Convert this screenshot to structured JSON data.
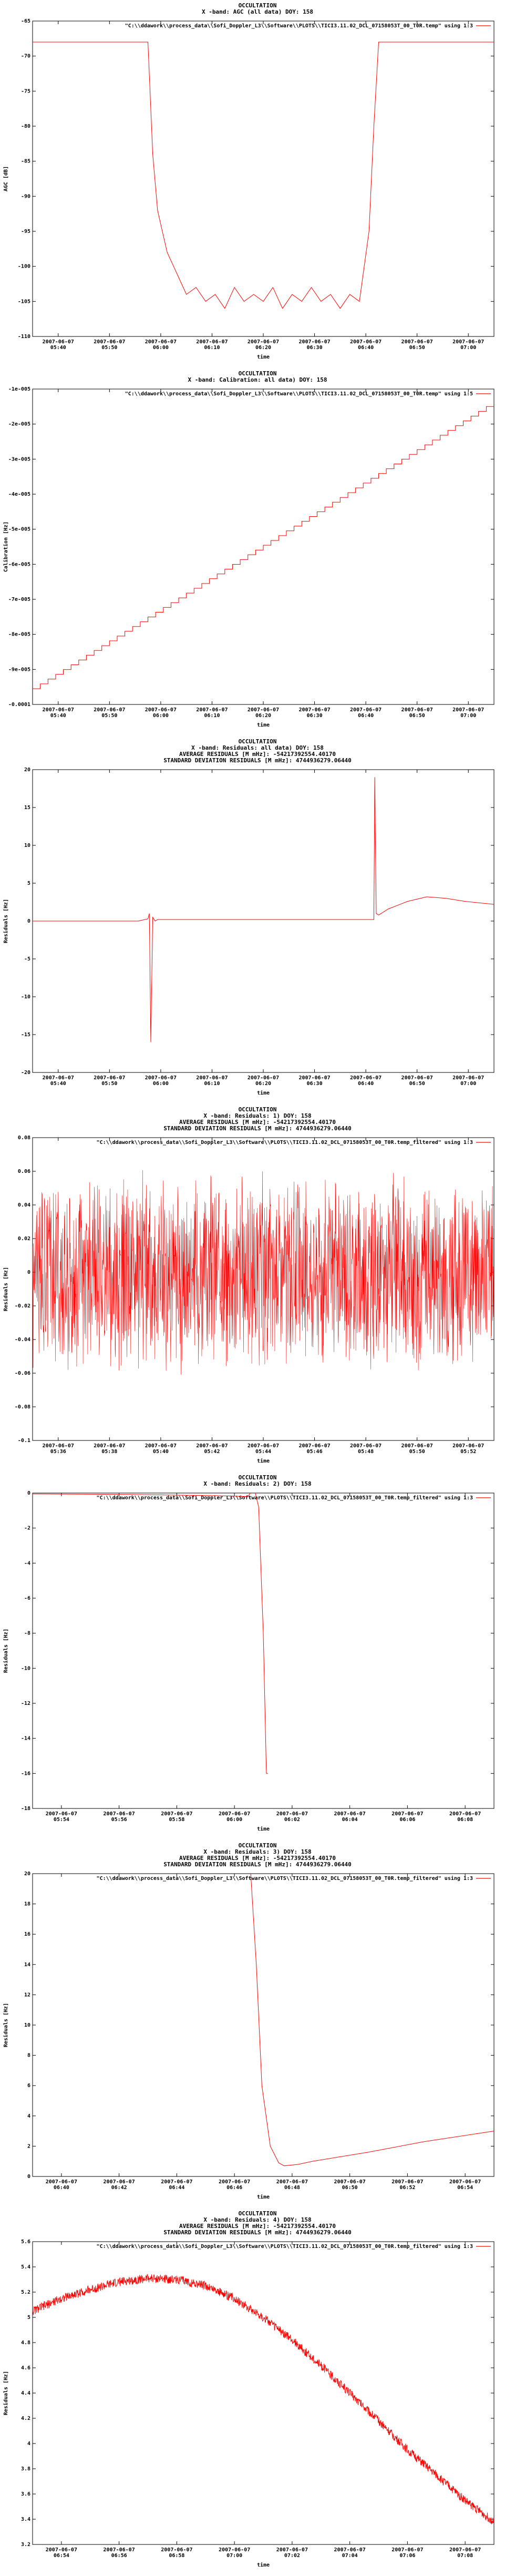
{
  "chart_data": [
    {
      "type": "line",
      "title": [
        "OCCULTATION",
        "X -band: AGC (all data) DOY: 158"
      ],
      "xlabel": "time",
      "ylabel": "AGC [dB]",
      "legend": "\"C:\\\\ddawork\\\\process_data\\\\Sofi_Doppler_L3\\\\Software\\\\PLOTS\\\\TICI3.11.02_DCL_07158053T_00_T0R.temp\" using 1:3",
      "legend_position": "top-right",
      "grid": false,
      "color": "#ff0000",
      "ylim": [
        -110,
        -65
      ],
      "yticks": [
        "-65",
        "-70",
        "-75",
        "-80",
        "-85",
        "-90",
        "-95",
        "-100",
        "-105",
        "-110"
      ],
      "xticks": [
        [
          "2007-06-07",
          "05:40"
        ],
        [
          "2007-06-07",
          "05:50"
        ],
        [
          "2007-06-07",
          "06:00"
        ],
        [
          "2007-06-07",
          "06:10"
        ],
        [
          "2007-06-07",
          "06:20"
        ],
        [
          "2007-06-07",
          "06:30"
        ],
        [
          "2007-06-07",
          "06:40"
        ],
        [
          "2007-06-07",
          "06:50"
        ],
        [
          "2007-06-07",
          "07:00"
        ]
      ],
      "xlim_minutes": [
        336,
        432
      ],
      "series": [
        {
          "x": [
            336,
            360,
            361,
            362,
            363,
            364,
            366,
            368,
            370,
            372,
            374,
            376,
            378,
            380,
            382,
            384,
            386,
            388,
            390,
            392,
            394,
            396,
            398,
            400,
            402,
            404,
            406,
            407,
            408,
            432
          ],
          "y": [
            -68,
            -68,
            -84,
            -92,
            -95,
            -98,
            -101,
            -104,
            -103,
            -105,
            -104,
            -106,
            -103,
            -105,
            -104,
            -105,
            -103,
            -106,
            -104,
            -105,
            -103,
            -105,
            -104,
            -106,
            -104,
            -105,
            -95,
            -80,
            -68,
            -68
          ]
        }
      ]
    },
    {
      "type": "line",
      "title": [
        "OCCULTATION",
        "X -band: Calibration: all data) DOY: 158"
      ],
      "xlabel": "time",
      "ylabel": "Calibration [Hz]",
      "legend": "\"C:\\\\ddawork\\\\process_data\\\\Sofi_Doppler_L3\\\\Software\\\\PLOTS\\\\TICI3.11.02_DCL_07158053T_00_T0R.temp\" using 1:5",
      "legend_position": "top-right",
      "grid": false,
      "color": "#ff0000",
      "ylim": [
        -0.0001,
        -1e-05
      ],
      "yticks": [
        "-1e-005",
        "-2e-005",
        "-3e-005",
        "-4e-005",
        "-5e-005",
        "-6e-005",
        "-7e-005",
        "-8e-005",
        "-9e-005",
        "-0.0001"
      ],
      "xticks": [
        [
          "2007-06-07",
          "05:40"
        ],
        [
          "2007-06-07",
          "05:50"
        ],
        [
          "2007-06-07",
          "06:00"
        ],
        [
          "2007-06-07",
          "06:10"
        ],
        [
          "2007-06-07",
          "06:20"
        ],
        [
          "2007-06-07",
          "06:30"
        ],
        [
          "2007-06-07",
          "06:40"
        ],
        [
          "2007-06-07",
          "06:50"
        ],
        [
          "2007-06-07",
          "07:00"
        ]
      ],
      "xlim_minutes": [
        336,
        432
      ],
      "series": [
        {
          "x": [
            336,
            432
          ],
          "y": [
            -9.55e-05,
            -1.5e-05
          ],
          "steps": 60
        }
      ]
    },
    {
      "type": "line",
      "title": [
        "OCCULTATION",
        "X -band: Residuals: all data) DOY: 158",
        "AVERAGE RESIDUALS [M mHz]: -54217392554.40170",
        "STANDARD DEVIATION RESIDUALS [M mHz]: 4744936279.06440"
      ],
      "xlabel": "time",
      "ylabel": "Residuals [Hz]",
      "legend": "",
      "legend_position": "top-right",
      "grid": false,
      "color": "#ff0000",
      "ylim": [
        -20,
        20
      ],
      "yticks": [
        "20",
        "15",
        "10",
        "5",
        "0",
        "-5",
        "-10",
        "-15",
        "-20"
      ],
      "xticks": [
        [
          "2007-06-07",
          "05:40"
        ],
        [
          "2007-06-07",
          "05:50"
        ],
        [
          "2007-06-07",
          "06:00"
        ],
        [
          "2007-06-07",
          "06:10"
        ],
        [
          "2007-06-07",
          "06:20"
        ],
        [
          "2007-06-07",
          "06:30"
        ],
        [
          "2007-06-07",
          "06:40"
        ],
        [
          "2007-06-07",
          "06:50"
        ],
        [
          "2007-06-07",
          "07:00"
        ]
      ],
      "xlim_minutes": [
        336,
        432
      ],
      "series": [
        {
          "x": [
            336,
            350,
            358,
            360,
            360.3,
            360.6,
            361,
            361.5,
            362,
            407,
            407.2,
            407.5,
            408,
            410,
            414,
            418,
            422,
            426,
            432
          ],
          "y": [
            0,
            0,
            0,
            0.3,
            1,
            -16,
            0.5,
            0,
            0.2,
            0.2,
            19,
            1,
            0.8,
            1.6,
            2.6,
            3.2,
            3.0,
            2.6,
            2.2
          ]
        }
      ]
    },
    {
      "type": "line",
      "title": [
        "OCCULTATION",
        "X -band: Residuals: 1) DOY: 158",
        "AVERAGE RESIDUALS [M mHz]: -54217392554.40170",
        "STANDARD DEVIATION RESIDUALS [M mHz]: 4744936279.06440"
      ],
      "xlabel": "time",
      "ylabel": "Residuals [Hz]",
      "legend": "\"C:\\\\ddawork\\\\process_data\\\\Sofi_Doppler_L3\\\\Software\\\\PLOTS\\\\TICI3.11.02_DCL_07158053T_00_T0R.temp_filtered\" using 1:3",
      "legend_position": "top-right",
      "grid": false,
      "color": "#ff0000",
      "ylim": [
        -0.1,
        0.08
      ],
      "yticks": [
        "0.08",
        "0.06",
        "0.04",
        "0.02",
        "0",
        "-0.02",
        "-0.04",
        "-0.06",
        "-0.08",
        "-0.1"
      ],
      "xticks": [
        [
          "2007-06-07",
          "05:36"
        ],
        [
          "2007-06-07",
          "05:38"
        ],
        [
          "2007-06-07",
          "05:40"
        ],
        [
          "2007-06-07",
          "05:42"
        ],
        [
          "2007-06-07",
          "05:44"
        ],
        [
          "2007-06-07",
          "05:46"
        ],
        [
          "2007-06-07",
          "05:48"
        ],
        [
          "2007-06-07",
          "05:50"
        ],
        [
          "2007-06-07",
          "05:52"
        ]
      ],
      "xlim_minutes": [
        335,
        353
      ],
      "series": [
        {
          "noise_center": 0.0,
          "noise_amplitude": 0.045,
          "samples": 1800
        }
      ]
    },
    {
      "type": "line",
      "title": [
        "OCCULTATION",
        "X -band: Residuals: 2) DOY: 158"
      ],
      "xlabel": "time",
      "ylabel": "Residuals [Hz]",
      "legend": "\"C:\\\\ddawork\\\\process_data\\\\Sofi_Doppler_L3\\\\Software\\\\PLOTS\\\\TICI3.11.02_DCL_07158053T_00_T0R.temp_filtered\" using 1:3",
      "legend_position": "top-right",
      "grid": false,
      "color": "#ff0000",
      "ylim": [
        -18,
        0
      ],
      "yticks": [
        "0",
        "-2",
        "-4",
        "-6",
        "-8",
        "-10",
        "-12",
        "-14",
        "-16",
        "-18"
      ],
      "xticks": [
        [
          "2007-06-07",
          "05:54"
        ],
        [
          "2007-06-07",
          "05:56"
        ],
        [
          "2007-06-07",
          "05:58"
        ],
        [
          "2007-06-07",
          "06:00"
        ],
        [
          "2007-06-07",
          "06:02"
        ],
        [
          "2007-06-07",
          "06:04"
        ],
        [
          "2007-06-07",
          "06:06"
        ],
        [
          "2007-06-07",
          "06:08"
        ]
      ],
      "xlim_minutes": [
        353,
        368
      ],
      "series": [
        {
          "x": [
            353,
            356,
            359,
            360,
            360.2,
            360.35,
            360.5,
            360.6,
            360.65
          ],
          "y": [
            -0.05,
            -0.08,
            -0.15,
            -0.2,
            0.3,
            -0.8,
            -8,
            -16,
            -16
          ]
        }
      ]
    },
    {
      "type": "line",
      "title": [
        "OCCULTATION",
        "X -band: Residuals: 3) DOY: 158",
        "AVERAGE RESIDUALS [M mHz]: -54217392554.40170",
        "STANDARD DEVIATION RESIDUALS [M mHz]: 4744936279.06440"
      ],
      "xlabel": "time",
      "ylabel": "Residuals [Hz]",
      "legend": "\"C:\\\\ddawork\\\\process_data\\\\Sofi_Doppler_L3\\\\Software\\\\PLOTS\\\\TICI3.11.02_DCL_07158053T_00_T0R.temp_filtered\" using 1:3",
      "legend_position": "top-right",
      "grid": false,
      "color": "#ff0000",
      "ylim": [
        0,
        20
      ],
      "yticks": [
        "20",
        "18",
        "16",
        "14",
        "12",
        "10",
        "8",
        "6",
        "4",
        "2",
        "0"
      ],
      "xticks": [
        [
          "2007-06-07",
          "06:40"
        ],
        [
          "2007-06-07",
          "06:42"
        ],
        [
          "2007-06-07",
          "06:44"
        ],
        [
          "2007-06-07",
          "06:46"
        ],
        [
          "2007-06-07",
          "06:48"
        ],
        [
          "2007-06-07",
          "06:50"
        ],
        [
          "2007-06-07",
          "06:52"
        ],
        [
          "2007-06-07",
          "06:54"
        ]
      ],
      "xlim_minutes": [
        398,
        414.5
      ],
      "series": [
        {
          "x": [
            405.8,
            406,
            406.2,
            406.5,
            406.8,
            407,
            407.5,
            408,
            410,
            412,
            414.5
          ],
          "y": [
            20,
            14,
            6,
            2,
            0.9,
            0.7,
            0.8,
            1.0,
            1.6,
            2.3,
            3.0
          ]
        }
      ]
    },
    {
      "type": "line",
      "title": [
        "OCCULTATION",
        "X -band: Residuals: 4) DOY: 158",
        "AVERAGE RESIDUALS [M mHz]: -54217392554.40170",
        "STANDARD DEVIATION RESIDUALS [M mHz]: 4744936279.06440"
      ],
      "xlabel": "time",
      "ylabel": "Residuals [Hz]",
      "legend": "\"C:\\\\ddawork\\\\process_data\\\\Sofi_Doppler_L3\\\\Software\\\\PLOTS\\\\TICI3.11.02_DCL_07158053T_00_T0R.temp_filtered\" using 1:3",
      "legend_position": "top-right",
      "grid": false,
      "color": "#ff0000",
      "ylim": [
        3.2,
        5.6
      ],
      "yticks": [
        "5.6",
        "5.4",
        "5.2",
        "5",
        "4.8",
        "4.6",
        "4.4",
        "4.2",
        "4",
        "3.8",
        "3.6",
        "3.4",
        "3.2"
      ],
      "xticks": [
        [
          "2007-06-07",
          "06:54"
        ],
        [
          "2007-06-07",
          "06:56"
        ],
        [
          "2007-06-07",
          "06:58"
        ],
        [
          "2007-06-07",
          "07:00"
        ],
        [
          "2007-06-07",
          "07:02"
        ],
        [
          "2007-06-07",
          "07:04"
        ],
        [
          "2007-06-07",
          "07:06"
        ],
        [
          "2007-06-07",
          "07:08"
        ]
      ],
      "xlim_minutes": [
        413,
        429
      ],
      "series": [
        {
          "x": [
            413,
            414,
            415,
            416,
            417,
            418,
            419,
            420,
            421,
            422,
            423,
            424,
            425,
            426,
            427,
            428,
            429
          ],
          "y": [
            5.05,
            5.15,
            5.22,
            5.28,
            5.31,
            5.3,
            5.25,
            5.15,
            5.0,
            4.82,
            4.62,
            4.4,
            4.18,
            3.95,
            3.75,
            3.55,
            3.38
          ],
          "noise_amplitude": 0.035
        }
      ]
    }
  ]
}
